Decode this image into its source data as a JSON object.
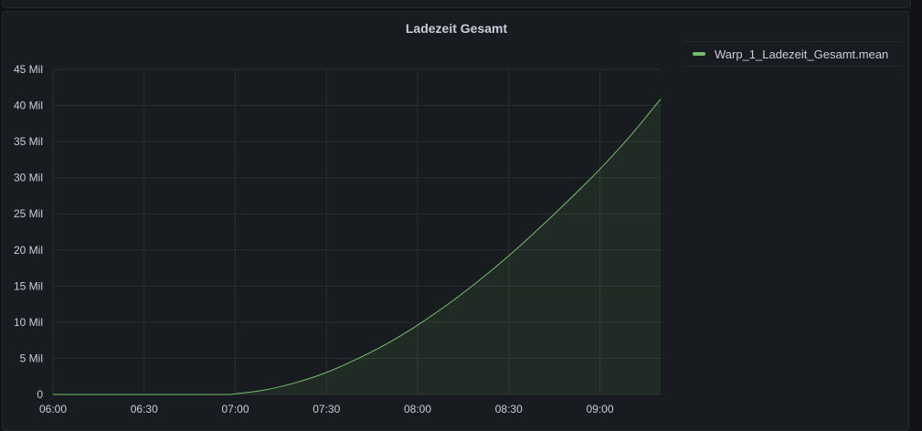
{
  "panel": {
    "title": "Ladezeit Gesamt"
  },
  "chart_data": {
    "type": "area",
    "title": "Ladezeit Gesamt",
    "xlabel": "",
    "ylabel": "",
    "x_ticks": [
      "06:00",
      "06:30",
      "07:00",
      "07:30",
      "08:00",
      "08:30",
      "09:00"
    ],
    "y_ticks": [
      "0",
      "5 Mil",
      "10 Mil",
      "15 Mil",
      "20 Mil",
      "25 Mil",
      "30 Mil",
      "35 Mil",
      "40 Mil",
      "45 Mil"
    ],
    "xlim": [
      "06:00",
      "09:20"
    ],
    "ylim": [
      0,
      45000000
    ],
    "grid": true,
    "legend_position": "right",
    "series": [
      {
        "name": "Warp_1_Ladezeit_Gesamt.mean",
        "color": "#73bf69",
        "x": [
          "06:00",
          "06:30",
          "06:55",
          "07:00",
          "07:10",
          "07:20",
          "07:30",
          "07:40",
          "07:50",
          "08:00",
          "08:10",
          "08:20",
          "08:30",
          "08:40",
          "08:50",
          "09:00",
          "09:10",
          "09:20"
        ],
        "values": [
          0,
          0,
          0,
          100000,
          650000,
          1650000,
          3050000,
          4900000,
          7050000,
          9600000,
          12500000,
          15700000,
          19200000,
          23000000,
          27000000,
          31200000,
          35800000,
          40900000
        ]
      }
    ]
  }
}
